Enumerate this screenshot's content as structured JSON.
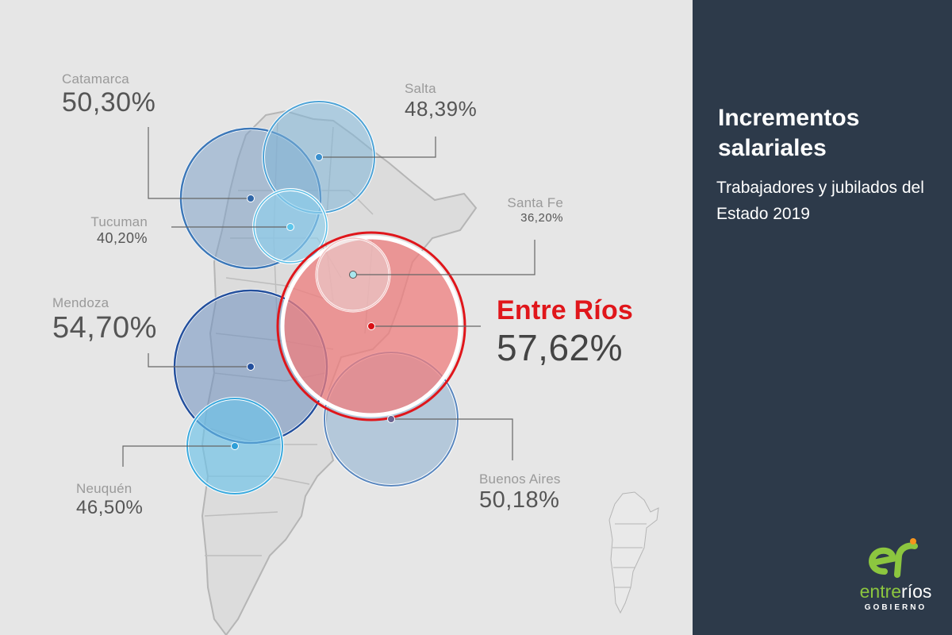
{
  "title": "Incrementos salariales",
  "subtitle": "Trabajadores y jubilados del Estado 2019",
  "highlight_color": "#e0161b",
  "panel_color": "#2d3a4a",
  "provinces": [
    {
      "name": "Catamarca",
      "value": "50,30%"
    },
    {
      "name": "Salta",
      "value": "48,39%"
    },
    {
      "name": "Tucuman",
      "value": "40,20%"
    },
    {
      "name": "Santa Fe",
      "value": "36,20%"
    },
    {
      "name": "Mendoza",
      "value": "54,70%"
    },
    {
      "name": "Entre Ríos",
      "value": "57,62%"
    },
    {
      "name": "Neuquén",
      "value": "46,50%"
    },
    {
      "name": "Buenos Aires",
      "value": "50,18%"
    }
  ],
  "logo": {
    "word_first": "entre",
    "word_second": "ríos",
    "sub": "GOBIERNO"
  }
}
